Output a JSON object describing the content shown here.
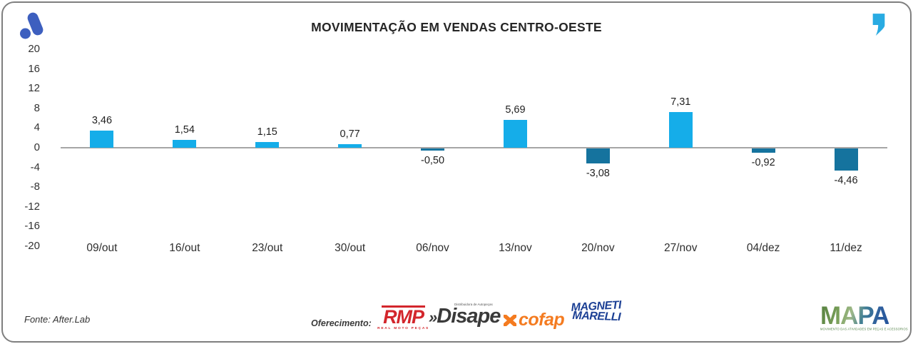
{
  "header": {
    "title": "MOVIMENTAÇÃO EM VENDAS CENTRO-OESTE",
    "icons": [
      "afterlab-mark-icon",
      "quote-icon"
    ]
  },
  "chart_data": {
    "type": "bar",
    "title": "MOVIMENTAÇÃO EM VENDAS CENTRO-OESTE",
    "categories": [
      "09/out",
      "16/out",
      "23/out",
      "30/out",
      "06/nov",
      "13/nov",
      "20/nov",
      "27/nov",
      "04/dez",
      "11/dez"
    ],
    "values": [
      3.46,
      1.54,
      1.15,
      0.77,
      -0.5,
      5.69,
      -3.08,
      7.31,
      -0.92,
      -4.46
    ],
    "labels": [
      "3,46",
      "1,54",
      "1,15",
      "0,77",
      "-0,50",
      "5,69",
      "-3,08",
      "7,31",
      "-0,92",
      "-4,46"
    ],
    "xlabel": "",
    "ylabel": "",
    "ylim": [
      -20,
      20
    ],
    "yticks": [
      20,
      16,
      12,
      8,
      4,
      0,
      -4,
      -8,
      -12,
      -16,
      -20
    ],
    "grid": false,
    "zero_line": true,
    "legend": "none",
    "positive_color": "#15ade9",
    "negative_color": "#15739e"
  },
  "footer": {
    "source": "Fonte: After.Lab",
    "sponsor_label": "Oferecimento:",
    "sponsors": {
      "rmp": {
        "name": "RMP",
        "tagline": "REAL MOTO PEÇAS",
        "color": "#d3262c"
      },
      "disape": {
        "prefix": "»",
        "name": "Disape",
        "tagline": "Distribuidora de Autopeças",
        "color": "#3a3a3a"
      },
      "cofap": {
        "name": "cofap",
        "color": "#f47b20",
        "icon": "cofap-x-icon"
      },
      "magneti": {
        "line1": "MAGNETI",
        "line2": "MARELLI",
        "color": "#1b3f94"
      }
    },
    "mapa": {
      "name": "MAPA",
      "tagline": "MOVIMENTO DAS ATIVIDADES EM PEÇAS E ACESSÓRIOS"
    }
  },
  "brand_colors": {
    "logo_blue": "#3d5fbf",
    "quote_cyan": "#29abe2",
    "zero_line": "#a6a6a6",
    "border": "#7f7f7f"
  }
}
